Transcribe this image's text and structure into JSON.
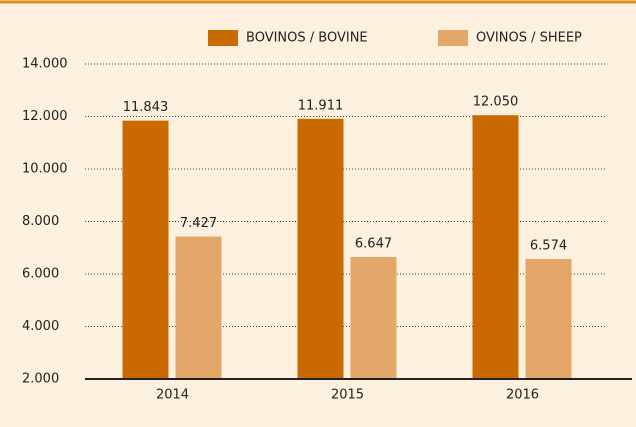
{
  "chart_data": {
    "type": "bar",
    "categories": [
      "2014",
      "2015",
      "2016"
    ],
    "series": [
      {
        "name": "BOVINOS / BOVINE",
        "color": "#c96a00",
        "values": [
          11843,
          11911,
          12050
        ],
        "value_labels": [
          "11.843",
          "11.911",
          "12.050"
        ]
      },
      {
        "name": "OVINOS / SHEEP",
        "color": "#e3a76a",
        "values": [
          7427,
          6647,
          6574
        ],
        "value_labels": [
          "7.427",
          "6.647",
          "6.574"
        ]
      }
    ],
    "ylim": [
      2000,
      14000
    ],
    "yticks": [
      {
        "value": 2000,
        "label": "2.000"
      },
      {
        "value": 4000,
        "label": "4.000"
      },
      {
        "value": 6000,
        "label": "6.000"
      },
      {
        "value": 8000,
        "label": "8.000"
      },
      {
        "value": 10000,
        "label": "10.000"
      },
      {
        "value": 12000,
        "label": "12.000"
      },
      {
        "value": 14000,
        "label": "14.000"
      }
    ],
    "grid": true,
    "legend": "top"
  }
}
